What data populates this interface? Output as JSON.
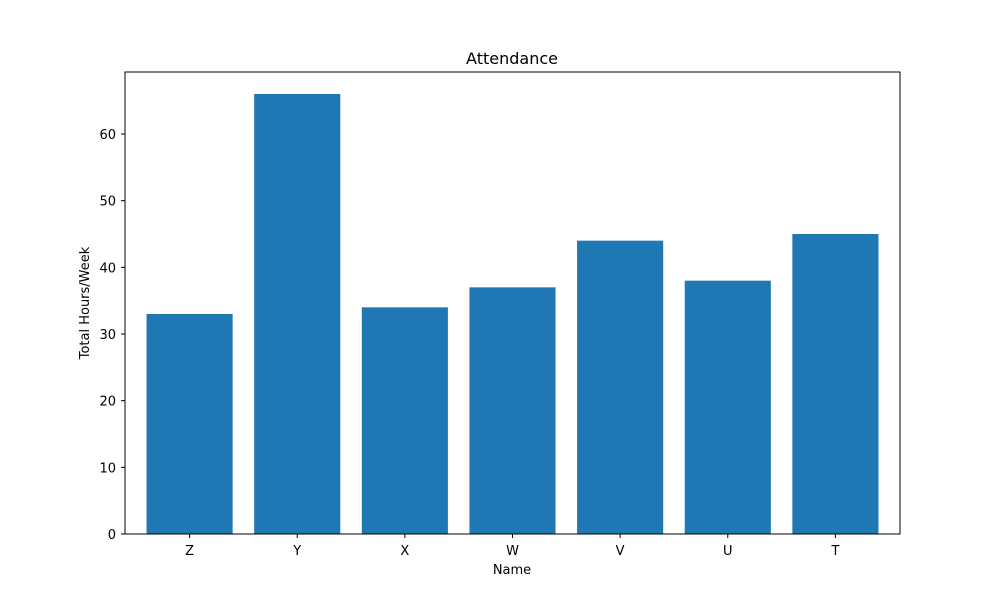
{
  "chart_data": {
    "type": "bar",
    "title": "Attendance",
    "xlabel": "Name",
    "ylabel": "Total Hours/Week",
    "categories": [
      "Z",
      "Y",
      "X",
      "W",
      "V",
      "U",
      "T"
    ],
    "values": [
      33,
      66,
      34,
      37,
      44,
      38,
      45
    ],
    "ylim": [
      0,
      69.3
    ],
    "yticks": [
      0,
      10,
      20,
      30,
      40,
      50,
      60
    ],
    "bar_color": "#1f77b4",
    "grid": false,
    "legend": "none"
  }
}
